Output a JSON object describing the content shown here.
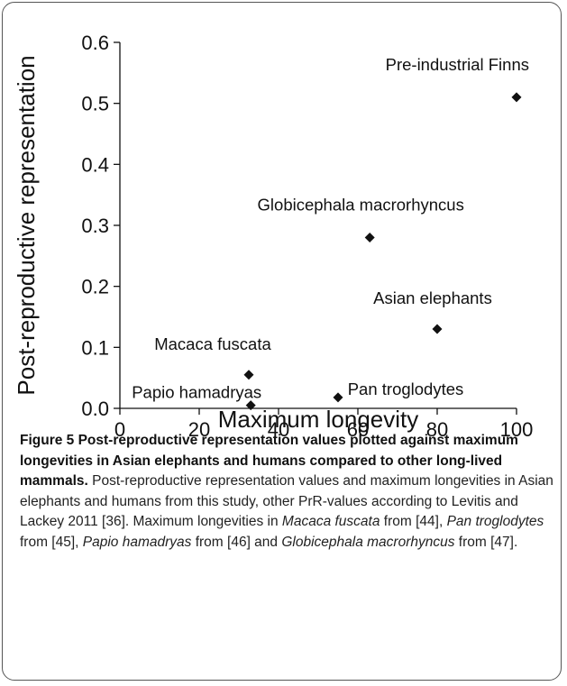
{
  "chart_data": {
    "type": "scatter",
    "x_label": "Maximum longevity",
    "y_label": "Post-reproductive representation",
    "point_labels": [
      "Pre-industrial Finns",
      "Globicephala macrorhyncus",
      "Asian elephants",
      "Macaca fuscata",
      "Papio hamadryas",
      "Pan troglodytes"
    ],
    "x": [
      100,
      63,
      80,
      32.5,
      33,
      55
    ],
    "values": [
      0.51,
      0.28,
      0.13,
      0.055,
      0.005,
      0.018
    ],
    "color": "#111111",
    "xlim": [
      0,
      100
    ],
    "xticks": [
      0,
      20,
      40,
      60,
      80,
      100
    ],
    "ylim": [
      0,
      0.6
    ],
    "yticks": [
      {
        "value": 0,
        "label": "0.0"
      },
      0.1,
      0.2,
      0.3,
      0.4,
      0.5,
      0.6
    ]
  },
  "caption": {
    "title": "Figure 5 Post-reproductive representation values plotted against maximum longevities in Asian elephants and humans compared to other long-lived mammals.",
    "body": [
      "Post-reproductive representation values and maximum longevities in Asian elephants and humans from this study, other PrR-values according to Levitis and Lackey 2011 [36]. Maximum longevities in ",
      "Macaca fuscata",
      " from [44], ",
      "Pan troglodytes",
      " from [45], ",
      "Papio hamadryas",
      " from [46] and ",
      "Globicephala macrorhyncus",
      " from [47]."
    ]
  }
}
